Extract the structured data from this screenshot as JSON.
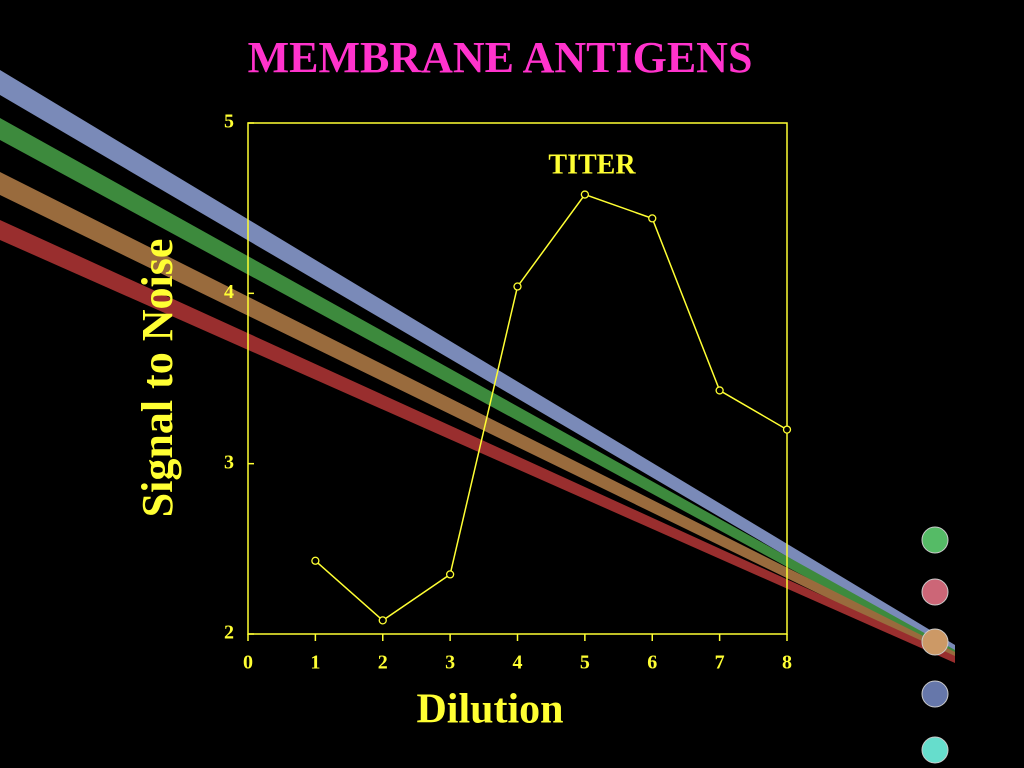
{
  "chart_data": {
    "type": "line",
    "title": "MEMBRANE ANTIGENS",
    "annotation": "TITER",
    "x_label": "Dilution",
    "y_label": "Signal to Noise",
    "x": [
      1,
      2,
      3,
      4,
      5,
      6,
      7,
      8
    ],
    "series": [
      {
        "color": "#ffff33",
        "values": [
          2.43,
          2.08,
          2.35,
          4.04,
          4.58,
          4.44,
          3.43,
          3.2
        ]
      }
    ],
    "xlim": [
      0,
      8
    ],
    "xticks": [
      0,
      1,
      2,
      3,
      4,
      5,
      6,
      7,
      8
    ],
    "ylim": [
      2,
      5
    ],
    "yticks": [
      2,
      3,
      4,
      5
    ]
  }
}
